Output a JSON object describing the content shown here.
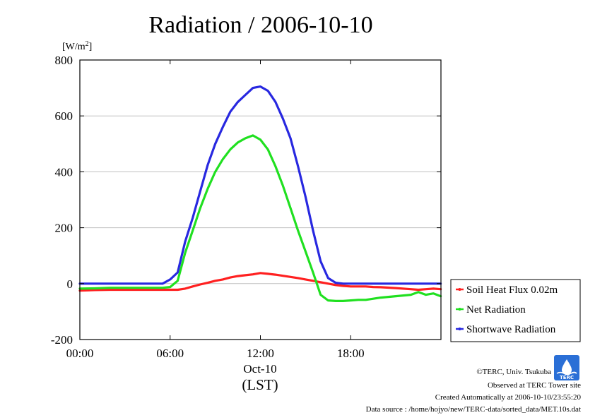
{
  "chart_data": {
    "type": "line",
    "title": "Radiation / 2006-10-10",
    "ylabel": "[W/m²]",
    "xlabel": "(LST)",
    "x_date_label": "Oct-10",
    "xlim": [
      "00:00",
      "23:59"
    ],
    "ylim": [
      -200,
      800
    ],
    "yticks": [
      -200,
      0,
      200,
      400,
      600,
      800
    ],
    "xticks": [
      "00:00",
      "06:00",
      "12:00",
      "18:00"
    ],
    "grid": true,
    "legend_position": "right",
    "x": [
      "00:00",
      "01:00",
      "02:00",
      "03:00",
      "04:00",
      "05:00",
      "05:30",
      "06:00",
      "06:30",
      "07:00",
      "07:30",
      "08:00",
      "08:30",
      "09:00",
      "09:30",
      "10:00",
      "10:30",
      "11:00",
      "11:30",
      "12:00",
      "12:30",
      "13:00",
      "13:30",
      "14:00",
      "14:30",
      "15:00",
      "15:30",
      "16:00",
      "16:30",
      "17:00",
      "17:30",
      "18:00",
      "18:30",
      "19:00",
      "19:30",
      "20:00",
      "21:00",
      "22:00",
      "22:30",
      "23:00",
      "23:30",
      "23:59"
    ],
    "series": [
      {
        "name": "Soil Heat Flux 0.02m",
        "color": "#ff2020",
        "values": [
          -25,
          -23,
          -22,
          -22,
          -22,
          -22,
          -22,
          -22,
          -22,
          -18,
          -10,
          -3,
          3,
          10,
          15,
          22,
          27,
          30,
          33,
          38,
          35,
          32,
          28,
          24,
          20,
          15,
          10,
          5,
          0,
          -5,
          -8,
          -10,
          -10,
          -10,
          -12,
          -13,
          -16,
          -20,
          -22,
          -20,
          -18,
          -20
        ]
      },
      {
        "name": "Net Radiation",
        "color": "#20e020",
        "values": [
          -18,
          -17,
          -15,
          -15,
          -15,
          -15,
          -15,
          -12,
          10,
          110,
          190,
          270,
          340,
          400,
          445,
          480,
          505,
          520,
          530,
          515,
          480,
          420,
          350,
          270,
          190,
          115,
          40,
          -40,
          -60,
          -62,
          -62,
          -60,
          -58,
          -58,
          -54,
          -50,
          -45,
          -40,
          -30,
          -40,
          -35,
          -45
        ]
      },
      {
        "name": "Shortwave Radiation",
        "color": "#2828e0",
        "values": [
          0,
          0,
          0,
          0,
          0,
          0,
          0,
          15,
          40,
          150,
          235,
          330,
          425,
          500,
          560,
          615,
          650,
          675,
          700,
          705,
          690,
          650,
          590,
          520,
          420,
          310,
          190,
          80,
          20,
          3,
          0,
          0,
          0,
          0,
          0,
          0,
          0,
          0,
          0,
          0,
          0,
          0
        ]
      }
    ]
  },
  "footer": {
    "copyright": "©TERC, Univ. Tsukuba",
    "site": "Observed at TERC Tower site",
    "created": "Created Automatically at 2006-10-10/23:55:20",
    "source": "Data source : /home/hojyo/new/TERC-data/sorted_data/MET.10s.dat",
    "logo_text": "TERC"
  }
}
